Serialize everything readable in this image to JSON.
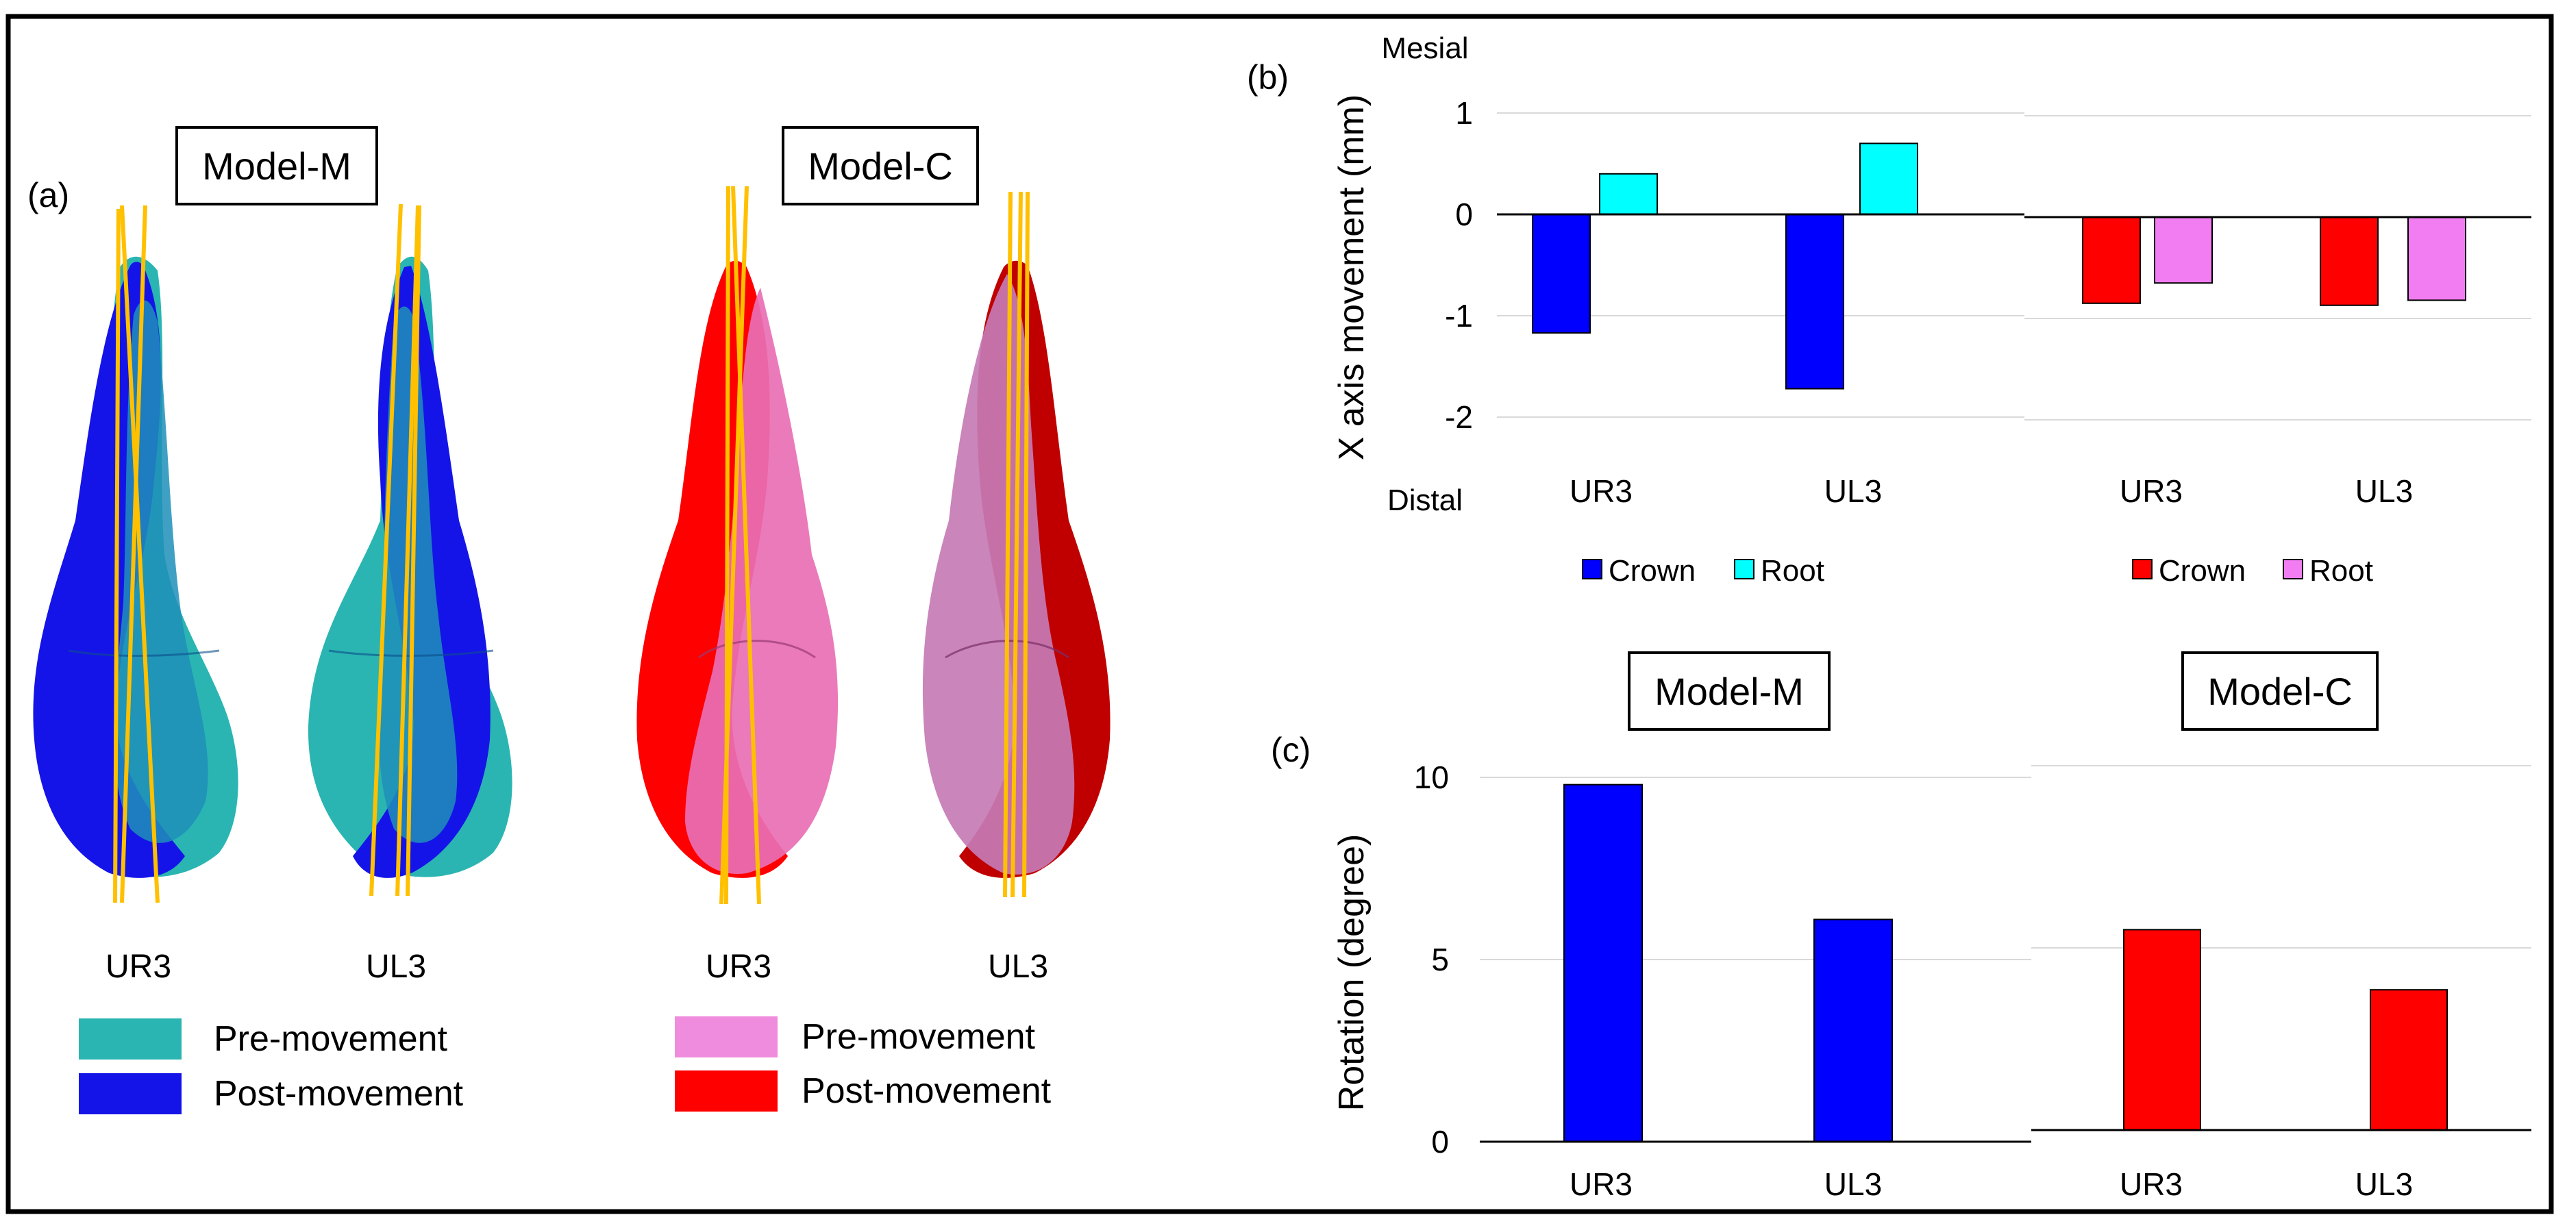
{
  "colors": {
    "model_m_crown": "#0000FF",
    "model_m_root": "#00FFFF",
    "model_c_crown": "#FF0000",
    "model_c_root": "#F27CF2",
    "m_pre": "#2AB5B2",
    "m_post": "#1414E8",
    "c_pre": "#F08CDD",
    "c_post": "#FF0000",
    "axis_line": "#FFC000",
    "gridline": "#D9D9D9"
  },
  "panel_a": {
    "label": "(a)",
    "model_m_title": "Model-M",
    "model_c_title": "Model-C",
    "teeth_labels": [
      "UR3",
      "UL3",
      "UR3",
      "UL3"
    ],
    "legend_m": {
      "pre": "Pre-movement",
      "post": "Post-movement"
    },
    "legend_c": {
      "pre": "Pre-movement",
      "post": "Post-movement"
    }
  },
  "panel_b_label": "(b)",
  "panel_c_label": "(c)",
  "chart_data": [
    {
      "type": "bar",
      "panel": "(b) left",
      "categories": [
        "UR3",
        "UL3"
      ],
      "series": [
        {
          "name": "Crown",
          "values": [
            -1.17,
            -1.72
          ]
        },
        {
          "name": "Root",
          "values": [
            0.4,
            0.7
          ]
        }
      ],
      "ylabel": "X axis movement (mm)",
      "top_annotation": "Mesial",
      "bottom_annotation": "Distal",
      "ylim": [
        -2,
        1
      ],
      "yticks": [
        1,
        0,
        -1,
        -2
      ],
      "grid": true,
      "legend": "bottom"
    },
    {
      "type": "bar",
      "panel": "(b) right",
      "categories": [
        "UR3",
        "UL3"
      ],
      "series": [
        {
          "name": "Crown",
          "values": [
            -0.85,
            -0.87
          ]
        },
        {
          "name": "Root",
          "values": [
            -0.65,
            -0.82
          ]
        }
      ],
      "ylim": [
        -2,
        1
      ],
      "grid": true,
      "legend": "bottom"
    },
    {
      "type": "bar",
      "panel": "(c) left",
      "title": "Model-M",
      "categories": [
        "UR3",
        "UL3"
      ],
      "values": [
        9.8,
        6.1
      ],
      "ylabel": "Rotation (degree)",
      "ylim": [
        0,
        10
      ],
      "yticks": [
        10,
        5,
        0
      ],
      "grid": true
    },
    {
      "type": "bar",
      "panel": "(c) right",
      "title": "Model-C",
      "categories": [
        "UR3",
        "UL3"
      ],
      "values": [
        5.5,
        3.85
      ],
      "ylim": [
        0,
        10
      ],
      "grid": true
    }
  ]
}
